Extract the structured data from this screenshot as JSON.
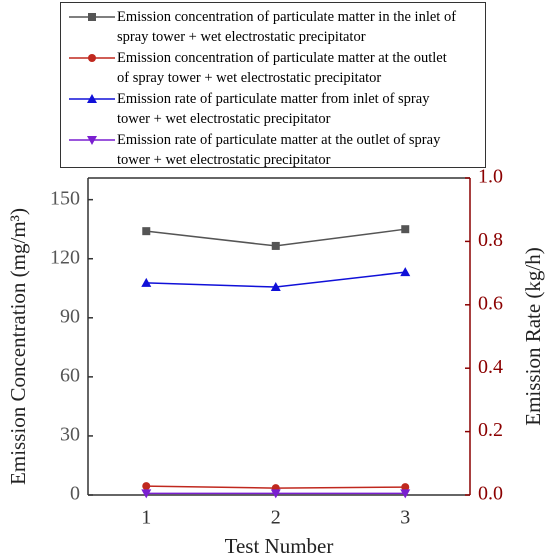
{
  "chart_data": {
    "type": "line",
    "x": [
      1,
      2,
      3
    ],
    "xlim": [
      0.55,
      3.5
    ],
    "xticks": [
      1,
      2,
      3
    ],
    "ylim": [
      0,
      161
    ],
    "yticks": [
      0,
      30,
      60,
      90,
      120,
      150
    ],
    "y2lim": [
      0,
      1.0
    ],
    "y2ticks": [
      {
        "value": 0,
        "label": "0.0"
      },
      0.2,
      0.4,
      0.6,
      0.8,
      {
        "value": 1,
        "label": "1.0"
      }
    ],
    "xlabel": "Test Number",
    "ylabel": "Emission Concentration (mg/m³)",
    "y2label": "Emission Rate (kg/h)",
    "y2color": "#8b0000",
    "series": [
      {
        "name": "Emission concentration of particulate matter in the inlet of spray tower + wet electrostatic precipitator",
        "color": "#555555",
        "marker": "square",
        "values": [
          134,
          126.5,
          135
        ]
      },
      {
        "name": "Emission concentration of particulate matter at the outlet of spray tower + wet electrostatic precipitator",
        "color": "#c0281e",
        "marker": "circle",
        "values": [
          4.5,
          3.5,
          4
        ]
      },
      {
        "name": "Emission rate of particulate matter from inlet of spray tower + wet electrostatic precipitator",
        "color": "#1010d8",
        "marker": "triangle-up",
        "axis": "y2",
        "values": [
          0.669,
          0.656,
          0.703
        ]
      },
      {
        "name": "Emission rate of particulate matter at the outlet of spray tower + wet electrostatic precipitator",
        "color": "#7a1fd0",
        "marker": "triangle-down",
        "axis": "y2",
        "values": [
          0.005,
          0.005,
          0.005
        ]
      }
    ]
  }
}
